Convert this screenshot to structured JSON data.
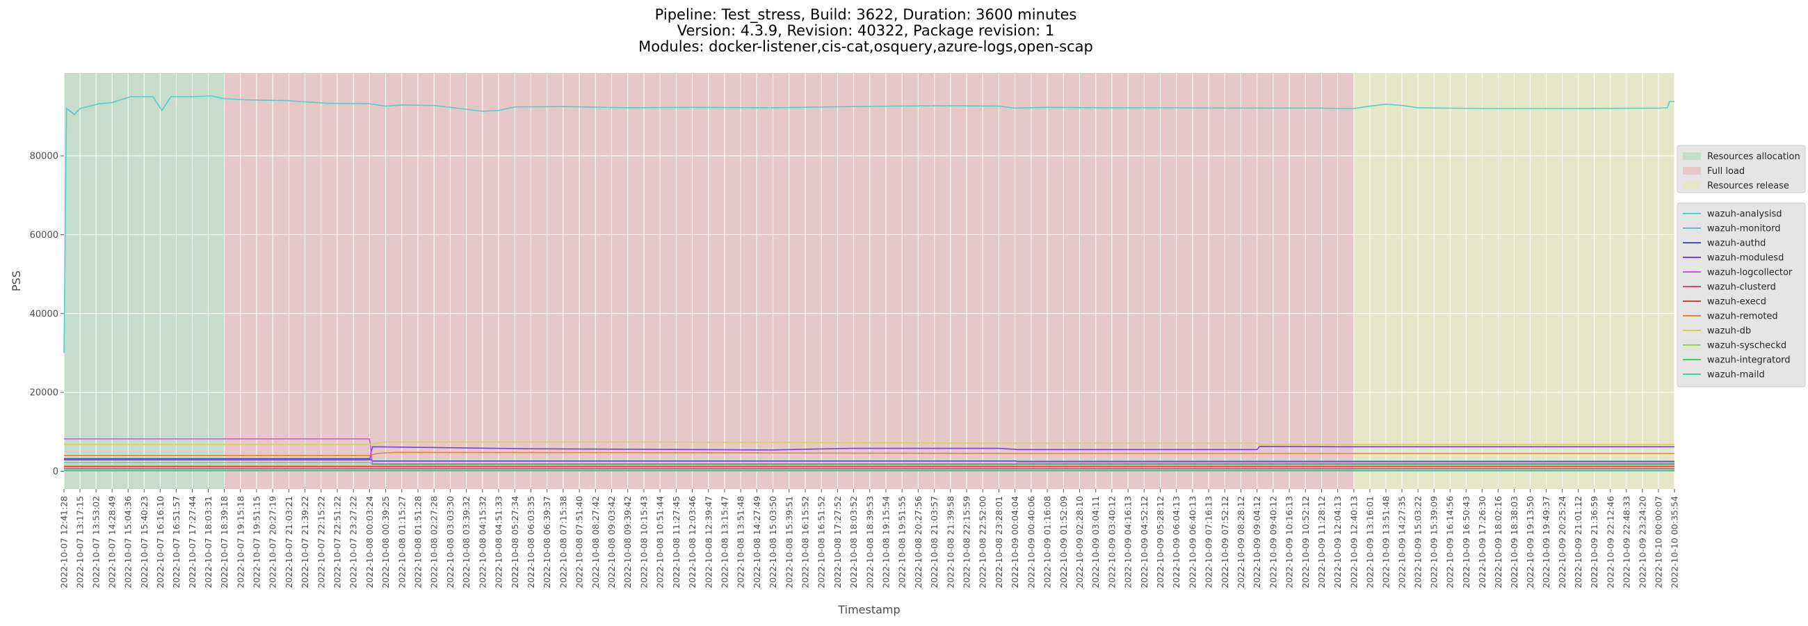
{
  "title_lines": [
    "Pipeline: Test_stress, Build: 3622, Duration: 3600 minutes",
    "Version: 4.3.9, Revision: 40322, Package revision: 1",
    "Modules: docker-listener,cis-cat,osquery,azure-logs,open-scap"
  ],
  "chart_data": {
    "type": "line",
    "xlabel": "Timestamp",
    "ylabel": "PSS",
    "ylim": [
      -4500,
      101000
    ],
    "yticks": [
      0,
      20000,
      40000,
      60000,
      80000
    ],
    "grid": true,
    "x_range": [
      "2022-10-07 12:41:28",
      "2022-10-10 00:35:54"
    ],
    "x_ticks": [
      "2022-10-07 12:41:28",
      "2022-10-07 13:17:15",
      "2022-10-07 13:53:02",
      "2022-10-07 14:28:49",
      "2022-10-07 15:04:36",
      "2022-10-07 15:40:23",
      "2022-10-07 16:16:10",
      "2022-10-07 16:51:57",
      "2022-10-07 17:27:44",
      "2022-10-07 18:03:31",
      "2022-10-07 18:39:18",
      "2022-10-07 19:15:18",
      "2022-10-07 19:51:15",
      "2022-10-07 20:27:19",
      "2022-10-07 21:03:21",
      "2022-10-07 21:39:22",
      "2022-10-07 22:15:22",
      "2022-10-07 22:51:22",
      "2022-10-07 23:27:22",
      "2022-10-08 00:03:24",
      "2022-10-08 00:39:25",
      "2022-10-08 01:15:27",
      "2022-10-08 01:51:28",
      "2022-10-08 02:27:28",
      "2022-10-08 03:03:30",
      "2022-10-08 03:39:32",
      "2022-10-08 04:15:32",
      "2022-10-08 04:51:33",
      "2022-10-08 05:27:34",
      "2022-10-08 06:03:35",
      "2022-10-08 06:39:37",
      "2022-10-08 07:15:38",
      "2022-10-08 07:51:40",
      "2022-10-08 08:27:42",
      "2022-10-08 09:03:42",
      "2022-10-08 09:39:42",
      "2022-10-08 10:15:43",
      "2022-10-08 10:51:44",
      "2022-10-08 11:27:45",
      "2022-10-08 12:03:46",
      "2022-10-08 12:39:47",
      "2022-10-08 13:15:47",
      "2022-10-08 13:51:48",
      "2022-10-08 14:27:49",
      "2022-10-08 15:03:50",
      "2022-10-08 15:39:51",
      "2022-10-08 16:15:52",
      "2022-10-08 16:51:52",
      "2022-10-08 17:27:52",
      "2022-10-08 18:03:52",
      "2022-10-08 18:39:53",
      "2022-10-08 19:15:54",
      "2022-10-08 19:51:55",
      "2022-10-08 20:27:56",
      "2022-10-08 21:03:57",
      "2022-10-08 21:39:58",
      "2022-10-08 22:15:59",
      "2022-10-08 22:52:00",
      "2022-10-08 23:28:01",
      "2022-10-09 00:04:04",
      "2022-10-09 00:40:06",
      "2022-10-09 01:16:08",
      "2022-10-09 01:52:09",
      "2022-10-09 02:28:10",
      "2022-10-09 03:04:11",
      "2022-10-09 03:40:12",
      "2022-10-09 04:16:13",
      "2022-10-09 04:52:12",
      "2022-10-09 05:28:12",
      "2022-10-09 06:04:13",
      "2022-10-09 06:40:13",
      "2022-10-09 07:16:13",
      "2022-10-09 07:52:12",
      "2022-10-09 08:28:12",
      "2022-10-09 09:04:12",
      "2022-10-09 09:40:12",
      "2022-10-09 10:16:13",
      "2022-10-09 10:52:12",
      "2022-10-09 11:28:12",
      "2022-10-09 12:04:13",
      "2022-10-09 12:40:13",
      "2022-10-09 13:16:01",
      "2022-10-09 13:51:48",
      "2022-10-09 14:27:35",
      "2022-10-09 15:03:22",
      "2022-10-09 15:39:09",
      "2022-10-09 16:14:56",
      "2022-10-09 16:50:43",
      "2022-10-09 17:26:30",
      "2022-10-09 18:02:16",
      "2022-10-09 18:38:03",
      "2022-10-09 19:13:50",
      "2022-10-09 19:49:37",
      "2022-10-09 20:25:24",
      "2022-10-09 21:01:12",
      "2022-10-09 21:36:59",
      "2022-10-09 22:12:46",
      "2022-10-09 22:48:33",
      "2022-10-09 23:24:20",
      "2022-10-10 00:00:07",
      "2022-10-10 00:35:54"
    ],
    "phases": [
      {
        "name": "Resources allocation",
        "start": "2022-10-07 12:41:28",
        "end": "2022-10-07 18:39:18",
        "color": "#c8dccc"
      },
      {
        "name": "Full load",
        "start": "2022-10-07 18:39:18",
        "end": "2022-10-09 12:40:13",
        "color": "#e6c8c8"
      },
      {
        "name": "Resources release",
        "start": "2022-10-09 12:40:13",
        "end": "2022-10-10 00:35:54",
        "color": "#e6e6c8"
      }
    ],
    "series": [
      {
        "name": "wazuh-analysisd",
        "color": "#4ed1d1",
        "points": [
          [
            "2022-10-07 12:41:28",
            30000
          ],
          [
            "2022-10-07 12:47:00",
            92000
          ],
          [
            "2022-10-07 13:05:00",
            90500
          ],
          [
            "2022-10-07 13:17:15",
            92000
          ],
          [
            "2022-10-07 14:00:00",
            93200
          ],
          [
            "2022-10-07 14:28:49",
            93500
          ],
          [
            "2022-10-07 15:10:00",
            95000
          ],
          [
            "2022-10-07 16:00:00",
            95000
          ],
          [
            "2022-10-07 16:20:00",
            91500
          ],
          [
            "2022-10-07 16:40:00",
            95000
          ],
          [
            "2022-10-07 17:27:44",
            95000
          ],
          [
            "2022-10-07 18:10:00",
            95200
          ],
          [
            "2022-10-07 18:39:18",
            94500
          ],
          [
            "2022-10-07 19:30:00",
            94200
          ],
          [
            "2022-10-07 21:00:00",
            94000
          ],
          [
            "2022-10-07 22:30:00",
            93300
          ],
          [
            "2022-10-08 00:03:24",
            93200
          ],
          [
            "2022-10-08 00:39:25",
            92600
          ],
          [
            "2022-10-08 01:15:27",
            92900
          ],
          [
            "2022-10-08 02:27:28",
            92800
          ],
          [
            "2022-10-08 04:15:32",
            91300
          ],
          [
            "2022-10-08 04:51:33",
            91500
          ],
          [
            "2022-10-08 05:27:34",
            92400
          ],
          [
            "2022-10-08 07:15:38",
            92500
          ],
          [
            "2022-10-08 09:39:42",
            92200
          ],
          [
            "2022-10-08 12:03:46",
            92300
          ],
          [
            "2022-10-08 15:03:50",
            92200
          ],
          [
            "2022-10-08 18:03:52",
            92500
          ],
          [
            "2022-10-08 21:03:57",
            92700
          ],
          [
            "2022-10-08 23:28:01",
            92600
          ],
          [
            "2022-10-09 00:04:04",
            92100
          ],
          [
            "2022-10-09 01:16:08",
            92300
          ],
          [
            "2022-10-09 03:04:11",
            92200
          ],
          [
            "2022-10-09 05:28:12",
            92200
          ],
          [
            "2022-10-09 08:28:12",
            92100
          ],
          [
            "2022-10-09 11:28:12",
            92100
          ],
          [
            "2022-10-09 12:04:13",
            92000
          ],
          [
            "2022-10-09 12:40:13",
            92000
          ],
          [
            "2022-10-09 13:16:01",
            92600
          ],
          [
            "2022-10-09 13:51:48",
            93100
          ],
          [
            "2022-10-09 14:27:35",
            92800
          ],
          [
            "2022-10-09 15:03:22",
            92200
          ],
          [
            "2022-10-09 17:26:30",
            92000
          ],
          [
            "2022-10-09 21:01:12",
            92000
          ],
          [
            "2022-10-10 00:00:07",
            92100
          ],
          [
            "2022-10-10 00:20:00",
            92200
          ],
          [
            "2022-10-10 00:25:00",
            93800
          ],
          [
            "2022-10-10 00:35:54",
            93800
          ]
        ]
      },
      {
        "name": "wazuh-monitord",
        "color": "#6fb6cf",
        "points": [
          [
            "2022-10-07 12:41:28",
            2200
          ],
          [
            "2022-10-08 00:03:24",
            2200
          ],
          [
            "2022-10-08 00:10:00",
            1900
          ],
          [
            "2022-10-09 00:04:04",
            1900
          ],
          [
            "2022-10-09 00:10:00",
            2100
          ],
          [
            "2022-10-10 00:35:54",
            2100
          ]
        ]
      },
      {
        "name": "wazuh-authd",
        "color": "#3b52d6",
        "points": [
          [
            "2022-10-07 12:41:28",
            3200
          ],
          [
            "2022-10-08 00:03:24",
            3200
          ],
          [
            "2022-10-08 00:10:00",
            2600
          ],
          [
            "2022-10-09 00:04:04",
            2600
          ],
          [
            "2022-10-09 00:10:00",
            2500
          ],
          [
            "2022-10-10 00:35:54",
            2500
          ]
        ]
      },
      {
        "name": "wazuh-modulesd",
        "color": "#7a3fd9",
        "points": [
          [
            "2022-10-07 12:41:28",
            2900
          ],
          [
            "2022-10-07 18:39:18",
            2900
          ],
          [
            "2022-10-08 00:03:24",
            2900
          ],
          [
            "2022-10-08 00:10:00",
            6200
          ],
          [
            "2022-10-08 06:00:00",
            5700
          ],
          [
            "2022-10-08 15:00:00",
            5400
          ],
          [
            "2022-10-08 18:00:00",
            5800
          ],
          [
            "2022-10-08 23:28:01",
            5800
          ],
          [
            "2022-10-09 00:10:00",
            5500
          ],
          [
            "2022-10-09 09:04:12",
            5500
          ],
          [
            "2022-10-09 09:10:00",
            6300
          ],
          [
            "2022-10-09 12:00:00",
            6200
          ],
          [
            "2022-10-10 00:35:54",
            6200
          ]
        ]
      },
      {
        "name": "wazuh-logcollector",
        "color": "#c55bd6",
        "points": [
          [
            "2022-10-07 12:41:28",
            8200
          ],
          [
            "2022-10-07 18:39:18",
            8200
          ],
          [
            "2022-10-08 00:03:24",
            8200
          ],
          [
            "2022-10-08 00:10:00",
            1800
          ],
          [
            "2022-10-10 00:35:54",
            1800
          ]
        ]
      },
      {
        "name": "wazuh-clusterd",
        "color": "#d6467a",
        "points": [
          [
            "2022-10-07 12:41:28",
            700
          ],
          [
            "2022-10-10 00:35:54",
            700
          ]
        ]
      },
      {
        "name": "wazuh-execd",
        "color": "#d63f3f",
        "points": [
          [
            "2022-10-07 12:41:28",
            1200
          ],
          [
            "2022-10-10 00:35:54",
            1200
          ]
        ]
      },
      {
        "name": "wazuh-remoted",
        "color": "#d48a3a",
        "points": [
          [
            "2022-10-07 12:41:28",
            4000
          ],
          [
            "2022-10-08 00:03:24",
            4000
          ],
          [
            "2022-10-08 00:20:00",
            4500
          ],
          [
            "2022-10-08 01:00:00",
            4800
          ],
          [
            "2022-10-08 12:00:00",
            4700
          ],
          [
            "2022-10-09 00:04:04",
            4500
          ],
          [
            "2022-10-10 00:35:54",
            4500
          ]
        ]
      },
      {
        "name": "wazuh-db",
        "color": "#d9cf5a",
        "points": [
          [
            "2022-10-07 12:41:28",
            6800
          ],
          [
            "2022-10-08 00:03:24",
            6800
          ],
          [
            "2022-10-08 00:39:25",
            7400
          ],
          [
            "2022-10-08 10:00:00",
            7400
          ],
          [
            "2022-10-09 00:04:04",
            7100
          ],
          [
            "2022-10-09 09:04:12",
            7100
          ],
          [
            "2022-10-09 09:10:00",
            6800
          ],
          [
            "2022-10-10 00:35:54",
            6800
          ]
        ]
      },
      {
        "name": "wazuh-syscheckd",
        "color": "#a3cf4a",
        "points": [
          [
            "2022-10-07 12:41:28",
            1500
          ],
          [
            "2022-10-10 00:35:54",
            1500
          ]
        ]
      },
      {
        "name": "wazuh-integratord",
        "color": "#3fcf6a",
        "points": [
          [
            "2022-10-07 12:41:28",
            300
          ],
          [
            "2022-10-10 00:35:54",
            300
          ]
        ]
      },
      {
        "name": "wazuh-maild",
        "color": "#3fc9a8",
        "points": [
          [
            "2022-10-07 12:41:28",
            100
          ],
          [
            "2022-10-10 00:35:54",
            100
          ]
        ]
      }
    ]
  }
}
